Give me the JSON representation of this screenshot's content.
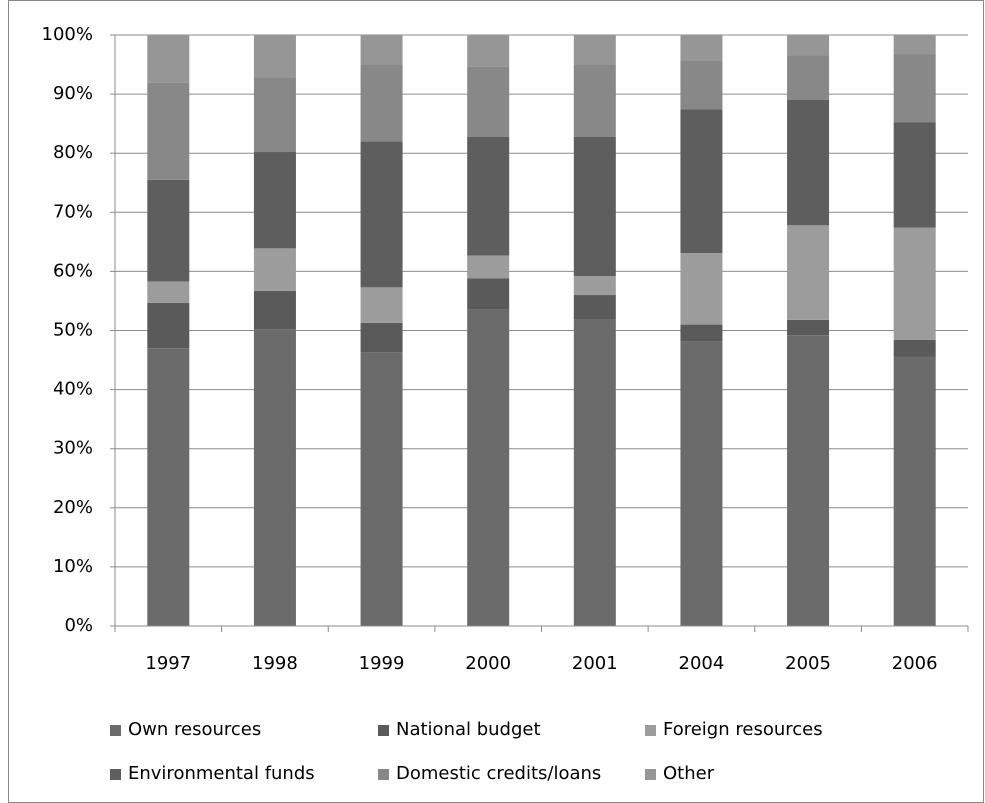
{
  "chart_data": {
    "type": "stacked_bar_100",
    "categories": [
      "1997",
      "1998",
      "1999",
      "2000",
      "2001",
      "2004",
      "2005",
      "2006"
    ],
    "series": [
      {
        "name": "Own resources",
        "color": "#6b6b6b",
        "values": [
          47,
          50.2,
          46.3,
          53.5,
          51.8,
          48.1,
          49.2,
          45.6
        ]
      },
      {
        "name": "National budget",
        "color": "#5a5a5a",
        "values": [
          7.7,
          6.5,
          5,
          5.3,
          4.2,
          2.9,
          2.6,
          2.8
        ]
      },
      {
        "name": "Foreign resources",
        "color": "#9c9c9c",
        "values": [
          3.6,
          7.2,
          6,
          3.9,
          3.2,
          12.1,
          16,
          19
        ]
      },
      {
        "name": "Environmental funds",
        "color": "#5e5e5e",
        "values": [
          17.2,
          16.3,
          24.7,
          20.1,
          23.6,
          24.3,
          21.2,
          17.8
        ]
      },
      {
        "name": "Domestic credits/loans",
        "color": "#888888",
        "values": [
          16.5,
          12.6,
          13,
          11.9,
          12.2,
          8.2,
          7.6,
          11.5
        ]
      },
      {
        "name": "Other",
        "color": "#969696",
        "values": [
          8,
          7.2,
          5,
          5.3,
          5,
          4.4,
          3.4,
          3.3
        ]
      }
    ],
    "ylim": [
      0,
      100
    ],
    "yticks": [
      {
        "value": 0,
        "label": "0%"
      },
      {
        "value": 10,
        "label": "10%"
      },
      {
        "value": 20,
        "label": "20%"
      },
      {
        "value": 30,
        "label": "30%"
      },
      {
        "value": 40,
        "label": "40%"
      },
      {
        "value": 50,
        "label": "50%"
      },
      {
        "value": 60,
        "label": "60%"
      },
      {
        "value": 70,
        "label": "70%"
      },
      {
        "value": 80,
        "label": "80%"
      },
      {
        "value": 90,
        "label": "90%"
      },
      {
        "value": 100,
        "label": "100%"
      }
    ],
    "grid": true
  }
}
